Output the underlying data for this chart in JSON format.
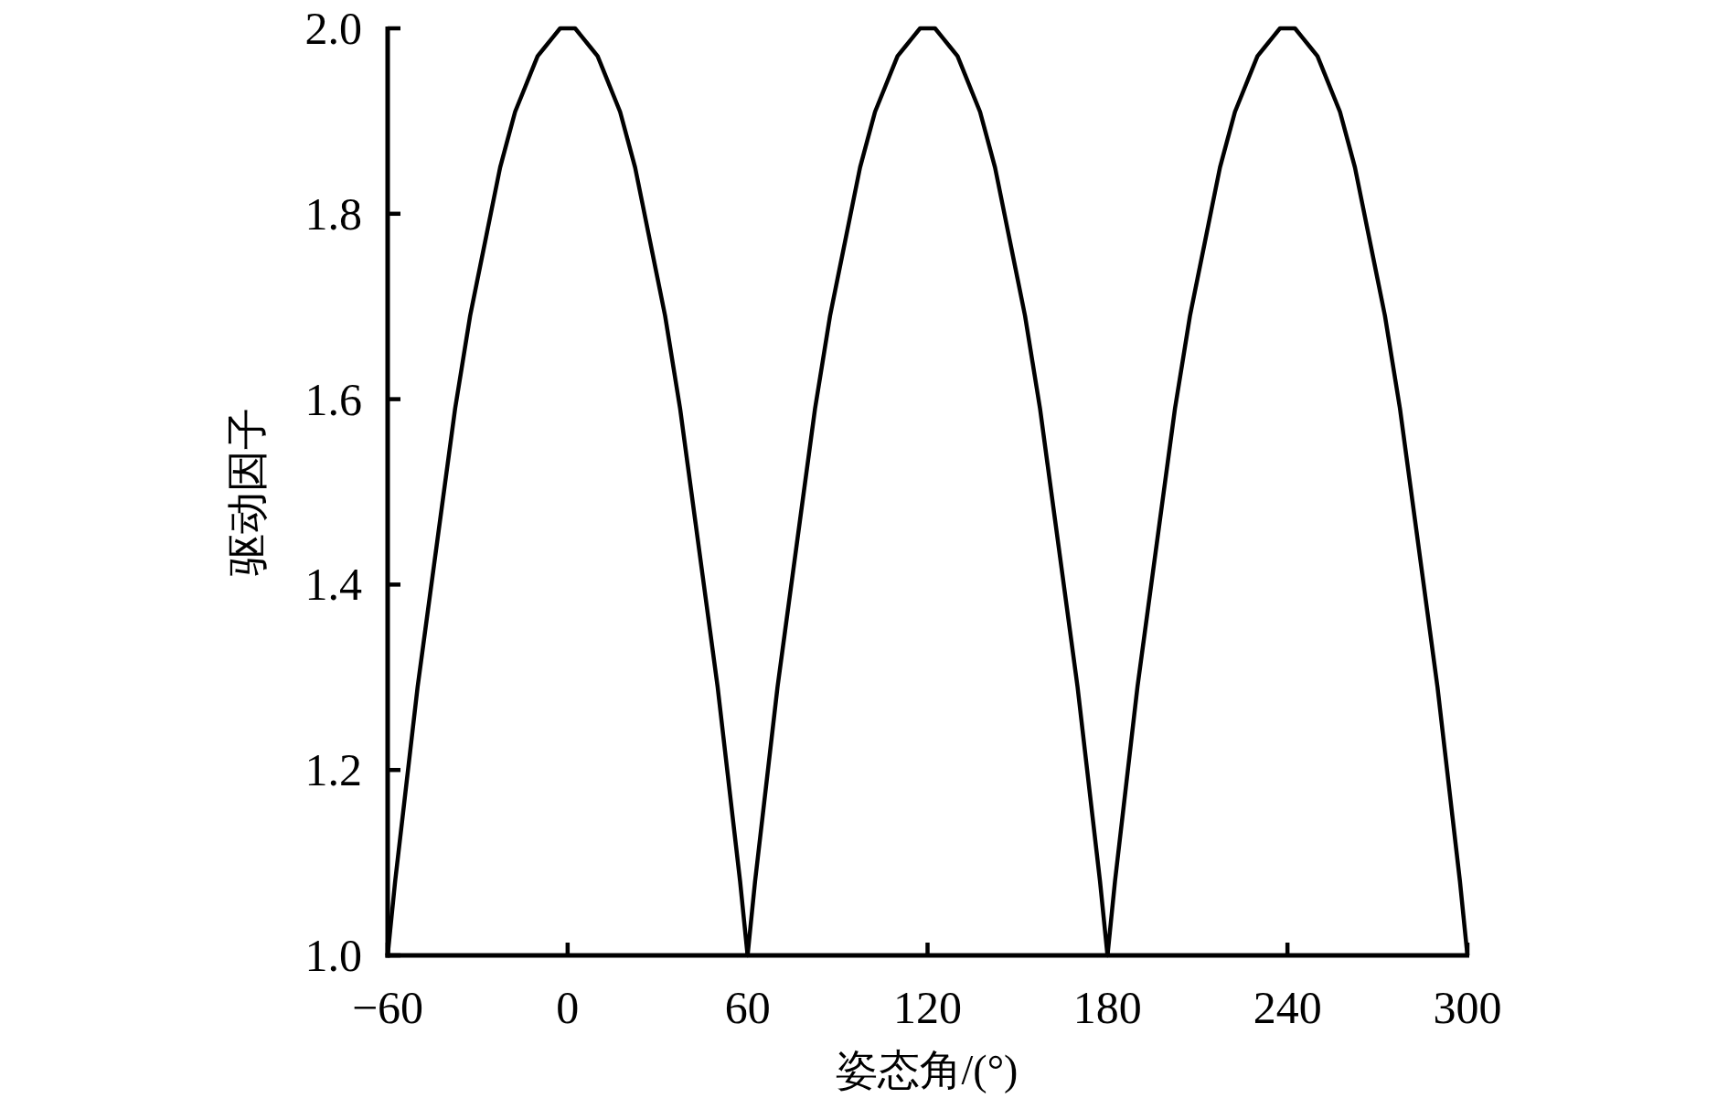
{
  "chart_data": {
    "type": "line",
    "xlabel": "姿态角/(°)",
    "ylabel": "驱动因子",
    "x": [
      -60,
      -57.5,
      -55,
      -52.5,
      -50,
      -47.5,
      -45,
      -42.5,
      -40,
      -37.5,
      -35,
      -32.5,
      -30,
      -27.5,
      -25,
      -22.5,
      -20,
      -17.5,
      -15,
      -12.5,
      -10,
      -7.5,
      -5,
      -2.5,
      0,
      2.5,
      5,
      7.5,
      10,
      12.5,
      15,
      17.5,
      20,
      22.5,
      25,
      27.5,
      30,
      32.5,
      35,
      37.5,
      40,
      42.5,
      45,
      47.5,
      50,
      52.5,
      55,
      57.5,
      60,
      62.5,
      65,
      67.5,
      70,
      72.5,
      75,
      77.5,
      80,
      82.5,
      85,
      87.5,
      90,
      92.5,
      95,
      97.5,
      100,
      102.5,
      105,
      107.5,
      110,
      112.5,
      115,
      117.5,
      120,
      122.5,
      125,
      127.5,
      130,
      132.5,
      135,
      137.5,
      140,
      142.5,
      145,
      147.5,
      150,
      152.5,
      155,
      157.5,
      160,
      162.5,
      165,
      167.5,
      170,
      172.5,
      175,
      177.5,
      180,
      182.5,
      185,
      187.5,
      190,
      192.5,
      195,
      197.5,
      200,
      202.5,
      205,
      207.5,
      210,
      212.5,
      215,
      217.5,
      220,
      222.5,
      225,
      227.5,
      230,
      232.5,
      235,
      237.5,
      240,
      242.5,
      245,
      247.5,
      250,
      252.5,
      255,
      257.5,
      260,
      262.5,
      265,
      267.5,
      270,
      272.5,
      275,
      277.5,
      280,
      282.5,
      285,
      287.5,
      290,
      292.5,
      295,
      297.5,
      300
    ],
    "series": [
      {
        "color": "#000000",
        "values": [
          1.0,
          1.08,
          1.15,
          1.22,
          1.29,
          1.35,
          1.41,
          1.47,
          1.53,
          1.59,
          1.64,
          1.69,
          1.73,
          1.77,
          1.81,
          1.85,
          1.88,
          1.91,
          1.93,
          1.95,
          1.97,
          1.98,
          1.99,
          2.0,
          2.0,
          2.0,
          1.99,
          1.98,
          1.97,
          1.95,
          1.93,
          1.91,
          1.88,
          1.85,
          1.81,
          1.77,
          1.73,
          1.69,
          1.64,
          1.59,
          1.53,
          1.47,
          1.41,
          1.35,
          1.29,
          1.22,
          1.15,
          1.08,
          1.0,
          1.08,
          1.15,
          1.22,
          1.29,
          1.35,
          1.41,
          1.47,
          1.53,
          1.59,
          1.64,
          1.69,
          1.73,
          1.77,
          1.81,
          1.85,
          1.88,
          1.91,
          1.93,
          1.95,
          1.97,
          1.98,
          1.99,
          2.0,
          2.0,
          2.0,
          1.99,
          1.98,
          1.97,
          1.95,
          1.93,
          1.91,
          1.88,
          1.85,
          1.81,
          1.77,
          1.73,
          1.69,
          1.64,
          1.59,
          1.53,
          1.47,
          1.41,
          1.35,
          1.29,
          1.22,
          1.15,
          1.08,
          1.0,
          1.08,
          1.15,
          1.22,
          1.29,
          1.35,
          1.41,
          1.47,
          1.53,
          1.59,
          1.64,
          1.69,
          1.73,
          1.77,
          1.81,
          1.85,
          1.88,
          1.91,
          1.93,
          1.95,
          1.97,
          1.98,
          1.99,
          2.0,
          2.0,
          2.0,
          1.99,
          1.98,
          1.97,
          1.95,
          1.93,
          1.91,
          1.88,
          1.85,
          1.81,
          1.77,
          1.73,
          1.69,
          1.64,
          1.59,
          1.53,
          1.47,
          1.41,
          1.35,
          1.29,
          1.22,
          1.15,
          1.08,
          1.0
        ]
      }
    ],
    "xlim": [
      -60,
      300
    ],
    "ylim": [
      1.0,
      2.0
    ],
    "xticks": [
      {
        "value": -60,
        "label": "−60"
      },
      0,
      60,
      120,
      180,
      240,
      300
    ],
    "yticks": [
      {
        "value": 1.0,
        "label": "1.0"
      },
      1.2,
      1.4,
      1.6,
      1.8,
      {
        "value": 2.0,
        "label": "2.0"
      }
    ],
    "line_style": "solid"
  }
}
